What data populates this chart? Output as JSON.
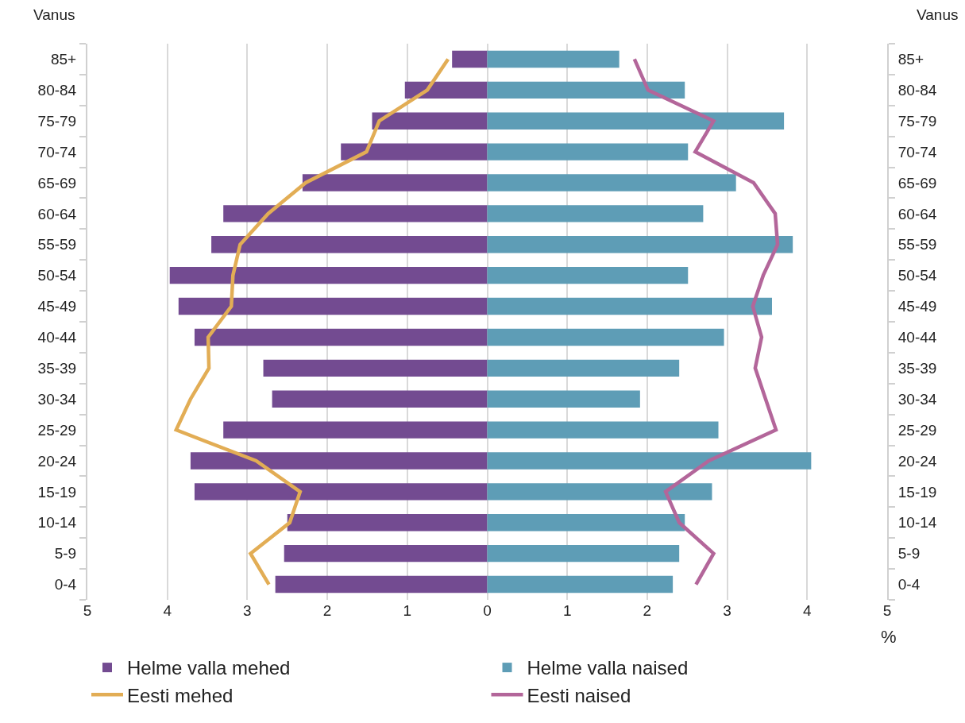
{
  "chart_data": {
    "type": "bar",
    "orientation": "horizontal",
    "ylabel": "Vanus",
    "y2label": "Vanus",
    "xlabel": "%",
    "categories": [
      "85+",
      "80-84",
      "75-79",
      "70-74",
      "65-69",
      "60-64",
      "55-59",
      "50-54",
      "45-49",
      "40-44",
      "35-39",
      "30-34",
      "25-29",
      "20-24",
      "15-19",
      "10-14",
      "5-9",
      "0-4"
    ],
    "series": [
      {
        "name": "Helme valla mehed",
        "color": "#734b91",
        "values": [
          -0.44,
          -1.03,
          -1.44,
          -1.83,
          -2.31,
          -3.3,
          -3.45,
          -3.97,
          -3.86,
          -3.66,
          -2.8,
          -2.69,
          -3.3,
          -3.71,
          -3.66,
          -2.5,
          -2.54,
          -2.65
        ]
      },
      {
        "name": "Helme valla naised",
        "color": "#5e9db6",
        "values": [
          1.65,
          2.47,
          3.71,
          2.51,
          3.11,
          2.7,
          3.82,
          2.51,
          3.56,
          2.96,
          2.4,
          1.91,
          2.89,
          4.05,
          2.81,
          2.47,
          2.4,
          2.32
        ]
      },
      {
        "name": "Eesti mehed",
        "type": "line",
        "color": "#e2ad55",
        "values": [
          -0.49,
          -0.75,
          -1.35,
          -1.51,
          -2.27,
          -2.74,
          -3.09,
          -3.18,
          -3.2,
          -3.49,
          -3.48,
          -3.71,
          -3.89,
          -2.89,
          -2.34,
          -2.47,
          -2.96,
          -2.73
        ]
      },
      {
        "name": "Eesti naised",
        "type": "line",
        "color": "#b3669a",
        "axis": "y2",
        "values": [
          1.84,
          2.01,
          2.83,
          2.6,
          3.33,
          3.6,
          3.63,
          3.45,
          3.32,
          3.43,
          3.35,
          3.48,
          3.61,
          2.77,
          2.23,
          2.4,
          2.83,
          2.61
        ]
      }
    ],
    "xlim": [
      -5,
      5
    ],
    "xticks": [
      {
        "value": -5,
        "label": "5"
      },
      {
        "value": -4,
        "label": "4"
      },
      {
        "value": -3,
        "label": "3"
      },
      {
        "value": -2,
        "label": "2"
      },
      {
        "value": -1,
        "label": "1"
      },
      0,
      1,
      2,
      3,
      4,
      5
    ],
    "stacked": true,
    "grid": "x",
    "legend": "bottom",
    "marker": "none",
    "line_style": "solid"
  }
}
